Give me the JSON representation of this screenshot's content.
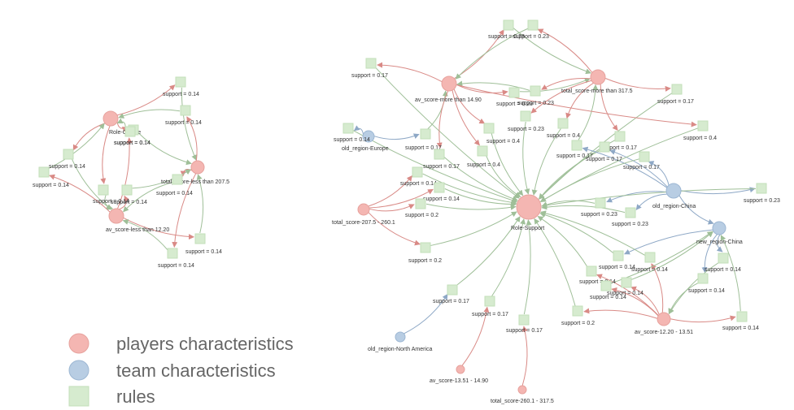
{
  "colors": {
    "player": "#f4b6b2",
    "team": "#b8cde3",
    "rule": "#d6ebcf",
    "edge_player": "#d98a86",
    "edge_rule": "#9fbf98",
    "edge_team": "#8ea8c6"
  },
  "legend": [
    {
      "label": "players characteristics",
      "kind": "player"
    },
    {
      "label": "team characteristics",
      "kind": "team"
    },
    {
      "label": "rules",
      "kind": "rule"
    }
  ],
  "graph1": {
    "nodes": [
      {
        "id": "roleOfflane",
        "label": "Role-Offlane",
        "kind": "player"
      },
      {
        "id": "totLess",
        "label": "total_score-less than 207.5",
        "kind": "player"
      },
      {
        "id": "avLess",
        "label": "av_score-less than 12.20",
        "kind": "player"
      },
      {
        "id": "r1a",
        "label": "support = 0.14",
        "kind": "rule"
      },
      {
        "id": "r1b",
        "label": "support = 0.14",
        "kind": "rule"
      },
      {
        "id": "r1c",
        "label": "support = 0.14",
        "kind": "rule"
      },
      {
        "id": "r1d",
        "label": "support = 0.14",
        "kind": "rule"
      },
      {
        "id": "r1e",
        "label": "support = 0.14",
        "kind": "rule"
      },
      {
        "id": "r1f",
        "label": "support = 0.14",
        "kind": "rule"
      },
      {
        "id": "r1g",
        "label": "support = 0.14",
        "kind": "rule"
      },
      {
        "id": "r1h",
        "label": "support = 0.14",
        "kind": "rule"
      },
      {
        "id": "r1i",
        "label": "support = 0.14",
        "kind": "rule"
      },
      {
        "id": "r1j",
        "label": "support = 0.14",
        "kind": "rule"
      },
      {
        "id": "r1k",
        "label": "support = 0.14",
        "kind": "rule"
      }
    ],
    "edges": [
      [
        "roleOfflane",
        "r1a"
      ],
      [
        "r1a",
        "totLess"
      ],
      [
        "totLess",
        "r1b"
      ],
      [
        "r1b",
        "roleOfflane"
      ],
      [
        "roleOfflane",
        "r1c"
      ],
      [
        "r1c",
        "totLess"
      ],
      [
        "roleOfflane",
        "r1d"
      ],
      [
        "r1d",
        "avLess"
      ],
      [
        "avLess",
        "r1e"
      ],
      [
        "r1e",
        "roleOfflane"
      ],
      [
        "totLess",
        "r1f"
      ],
      [
        "r1f",
        "avLess"
      ],
      [
        "avLess",
        "r1g"
      ],
      [
        "r1g",
        "totLess"
      ],
      [
        "roleOfflane",
        "r1h"
      ],
      [
        "r1h",
        "avLess"
      ],
      [
        "avLess",
        "r1i"
      ],
      [
        "r1i",
        "totLess"
      ],
      [
        "totLess",
        "r1j"
      ],
      [
        "r1j",
        "avLess"
      ],
      [
        "avLess",
        "r1k"
      ],
      [
        "r1k",
        "roleOfflane"
      ]
    ]
  },
  "graph2": {
    "nodes": [
      {
        "id": "avMore",
        "label": "av_score-more than 14.90",
        "kind": "player"
      },
      {
        "id": "totMore",
        "label": "total_score-more than 317.5",
        "kind": "player"
      },
      {
        "id": "oldEurope",
        "label": "old_region-Europe",
        "kind": "team"
      },
      {
        "id": "roleSupport",
        "label": "Role-Support",
        "kind": "player"
      },
      {
        "id": "oldChina",
        "label": "old_region-China",
        "kind": "team"
      },
      {
        "id": "newChina",
        "label": "new_region-China",
        "kind": "team"
      },
      {
        "id": "tot2075",
        "label": "total_score-207.5 - 260.1",
        "kind": "player"
      },
      {
        "id": "av1220",
        "label": "av_score-12.20 - 13.51",
        "kind": "player"
      },
      {
        "id": "oldNA",
        "label": "old_region-North America",
        "kind": "team"
      },
      {
        "id": "av1351",
        "label": "av_score-13.51 - 14.90",
        "kind": "player"
      },
      {
        "id": "tot2601",
        "label": "total_score-260.1 - 317.5",
        "kind": "player"
      },
      {
        "id": "s01",
        "label": "support = 0.23",
        "kind": "rule"
      },
      {
        "id": "s02",
        "label": "support = 0.23",
        "kind": "rule"
      },
      {
        "id": "s03",
        "label": "support = 0.17",
        "kind": "rule"
      },
      {
        "id": "s04",
        "label": "support = 0.23",
        "kind": "rule"
      },
      {
        "id": "s05",
        "label": "support = 0.23",
        "kind": "rule"
      },
      {
        "id": "s06",
        "label": "support = 0.17",
        "kind": "rule"
      },
      {
        "id": "s07",
        "label": "support = 0.14",
        "kind": "rule"
      },
      {
        "id": "s08",
        "label": "support = 0.17",
        "kind": "rule"
      },
      {
        "id": "s09",
        "label": "support = 0.4",
        "kind": "rule"
      },
      {
        "id": "s10",
        "label": "support = 0.23",
        "kind": "rule"
      },
      {
        "id": "s11",
        "label": "support = 0.4",
        "kind": "rule"
      },
      {
        "id": "s12",
        "label": "support = 0.4",
        "kind": "rule"
      },
      {
        "id": "s13",
        "label": "support = 0.17",
        "kind": "rule"
      },
      {
        "id": "s14",
        "label": "support = 0.17",
        "kind": "rule"
      },
      {
        "id": "s15",
        "label": "support = 0.17",
        "kind": "rule"
      },
      {
        "id": "s16",
        "label": "support = 0.17",
        "kind": "rule"
      },
      {
        "id": "s17",
        "label": "support = 0.17",
        "kind": "rule"
      },
      {
        "id": "s18",
        "label": "support = 0.4",
        "kind": "rule"
      },
      {
        "id": "s19",
        "label": "support = 0.14",
        "kind": "rule"
      },
      {
        "id": "s20",
        "label": "support = 0.14",
        "kind": "rule"
      },
      {
        "id": "s21",
        "label": "support = 0.2",
        "kind": "rule"
      },
      {
        "id": "s22",
        "label": "support = 0.23",
        "kind": "rule"
      },
      {
        "id": "s23",
        "label": "support = 0.23",
        "kind": "rule"
      },
      {
        "id": "s24",
        "label": "support = 0.23",
        "kind": "rule"
      },
      {
        "id": "s25",
        "label": "support = 0.2",
        "kind": "rule"
      },
      {
        "id": "s26",
        "label": "support = 0.14",
        "kind": "rule"
      },
      {
        "id": "s27",
        "label": "support = 0.14",
        "kind": "rule"
      },
      {
        "id": "s28",
        "label": "support = 0.14",
        "kind": "rule"
      },
      {
        "id": "s29",
        "label": "support = 0.14",
        "kind": "rule"
      },
      {
        "id": "s30",
        "label": "support = 0.14",
        "kind": "rule"
      },
      {
        "id": "s31",
        "label": "support = 0.14",
        "kind": "rule"
      },
      {
        "id": "s32",
        "label": "support = 0.14",
        "kind": "rule"
      },
      {
        "id": "s33",
        "label": "support = 0.17",
        "kind": "rule"
      },
      {
        "id": "s34",
        "label": "support = 0.17",
        "kind": "rule"
      },
      {
        "id": "s35",
        "label": "support = 0.17",
        "kind": "rule"
      },
      {
        "id": "s36",
        "label": "support = 0.2",
        "kind": "rule"
      },
      {
        "id": "s37",
        "label": "support = 0.14",
        "kind": "rule"
      }
    ],
    "edges": [
      [
        "avMore",
        "s01",
        "r"
      ],
      [
        "s01",
        "totMore",
        "g"
      ],
      [
        "totMore",
        "s02",
        "r"
      ],
      [
        "s02",
        "avMore",
        "g"
      ],
      [
        "avMore",
        "s04",
        "r"
      ],
      [
        "s04",
        "totMore",
        "g"
      ],
      [
        "totMore",
        "s05",
        "r"
      ],
      [
        "s05",
        "avMore",
        "g"
      ],
      [
        "avMore",
        "s03",
        "r"
      ],
      [
        "s03",
        "roleSupport",
        "g"
      ],
      [
        "totMore",
        "s06",
        "r"
      ],
      [
        "s06",
        "roleSupport",
        "g"
      ],
      [
        "oldEurope",
        "s07",
        "b"
      ],
      [
        "s07",
        "roleSupport",
        "g"
      ],
      [
        "oldEurope",
        "s08",
        "b"
      ],
      [
        "s08",
        "avMore",
        "g"
      ],
      [
        "avMore",
        "s09",
        "r"
      ],
      [
        "s09",
        "roleSupport",
        "g"
      ],
      [
        "totMore",
        "s10",
        "r"
      ],
      [
        "s10",
        "roleSupport",
        "g"
      ],
      [
        "totMore",
        "s11",
        "r"
      ],
      [
        "s11",
        "roleSupport",
        "g"
      ],
      [
        "avMore",
        "s12",
        "r"
      ],
      [
        "s12",
        "roleSupport",
        "g"
      ],
      [
        "totMore",
        "s13",
        "r"
      ],
      [
        "s13",
        "roleSupport",
        "g"
      ],
      [
        "oldChina",
        "s14",
        "b"
      ],
      [
        "s14",
        "roleSupport",
        "g"
      ],
      [
        "oldChina",
        "s15",
        "b"
      ],
      [
        "s15",
        "totMore",
        "g"
      ],
      [
        "oldChina",
        "s16",
        "b"
      ],
      [
        "s16",
        "roleSupport",
        "g"
      ],
      [
        "avMore",
        "s17",
        "r"
      ],
      [
        "s17",
        "roleSupport",
        "g"
      ],
      [
        "avMore",
        "s18",
        "r"
      ],
      [
        "s18",
        "roleSupport",
        "g"
      ],
      [
        "tot2075",
        "s19",
        "r"
      ],
      [
        "s19",
        "roleSupport",
        "g"
      ],
      [
        "tot2075",
        "s20",
        "r"
      ],
      [
        "s20",
        "roleSupport",
        "g"
      ],
      [
        "tot2075",
        "s21",
        "r"
      ],
      [
        "s21",
        "roleSupport",
        "g"
      ],
      [
        "oldChina",
        "s22",
        "b"
      ],
      [
        "s22",
        "roleSupport",
        "g"
      ],
      [
        "oldChina",
        "s23",
        "b"
      ],
      [
        "s23",
        "roleSupport",
        "g"
      ],
      [
        "oldChina",
        "s24",
        "b"
      ],
      [
        "s24",
        "roleSupport",
        "g"
      ],
      [
        "tot2075",
        "s25",
        "r"
      ],
      [
        "s25",
        "roleSupport",
        "g"
      ],
      [
        "newChina",
        "s26",
        "b"
      ],
      [
        "s26",
        "roleSupport",
        "g"
      ],
      [
        "av1220",
        "s27",
        "r"
      ],
      [
        "s27",
        "roleSupport",
        "g"
      ],
      [
        "av1220",
        "s28",
        "r"
      ],
      [
        "s28",
        "newChina",
        "g"
      ],
      [
        "newChina",
        "s29",
        "b"
      ],
      [
        "s29",
        "av1220",
        "g"
      ],
      [
        "av1220",
        "s30",
        "r"
      ],
      [
        "s30",
        "roleSupport",
        "g"
      ],
      [
        "newChina",
        "s31",
        "b"
      ],
      [
        "s31",
        "av1220",
        "g"
      ],
      [
        "av1220",
        "s32",
        "r"
      ],
      [
        "s32",
        "newChina",
        "g"
      ],
      [
        "oldNA",
        "s33",
        "b"
      ],
      [
        "s33",
        "roleSupport",
        "g"
      ],
      [
        "av1351",
        "s34",
        "r"
      ],
      [
        "s34",
        "roleSupport",
        "g"
      ],
      [
        "tot2601",
        "s35",
        "r"
      ],
      [
        "s35",
        "roleSupport",
        "g"
      ],
      [
        "av1220",
        "s36",
        "r"
      ],
      [
        "s36",
        "roleSupport",
        "g"
      ],
      [
        "av1220",
        "s37",
        "r"
      ],
      [
        "s37",
        "newChina",
        "g"
      ],
      [
        "oldChina",
        "newChina",
        "b"
      ]
    ]
  }
}
